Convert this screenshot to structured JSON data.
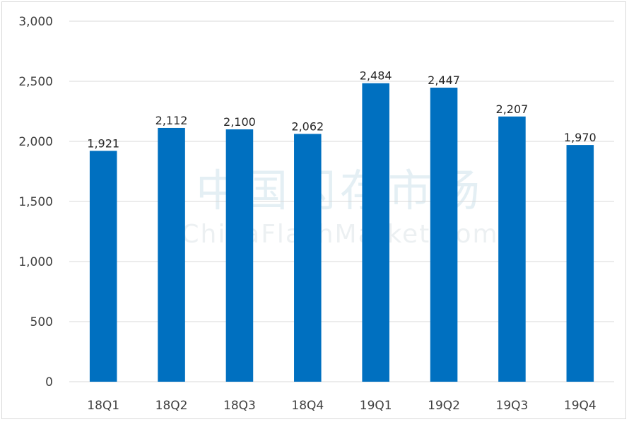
{
  "watermark": {
    "cn": "中国闪存市场",
    "en": "ChinaFlashMarket.com"
  },
  "chart_data": {
    "type": "bar",
    "categories": [
      "18Q1",
      "18Q2",
      "18Q3",
      "18Q4",
      "19Q1",
      "19Q2",
      "19Q3",
      "19Q4"
    ],
    "values": [
      1921,
      2112,
      2100,
      2062,
      2484,
      2447,
      2207,
      1970
    ],
    "data_labels": [
      "1,921",
      "2,112",
      "2,100",
      "2,062",
      "2,484",
      "2,447",
      "2,207",
      "1,970"
    ],
    "ylim": [
      0,
      3000
    ],
    "yticks": [
      0,
      500,
      1000,
      1500,
      2000,
      2500,
      3000
    ],
    "ytick_labels": [
      "0",
      "500",
      "1,000",
      "1,500",
      "2,000",
      "2,500",
      "3,000"
    ],
    "grid": true,
    "colors": {
      "bar": "#0070C0"
    }
  }
}
